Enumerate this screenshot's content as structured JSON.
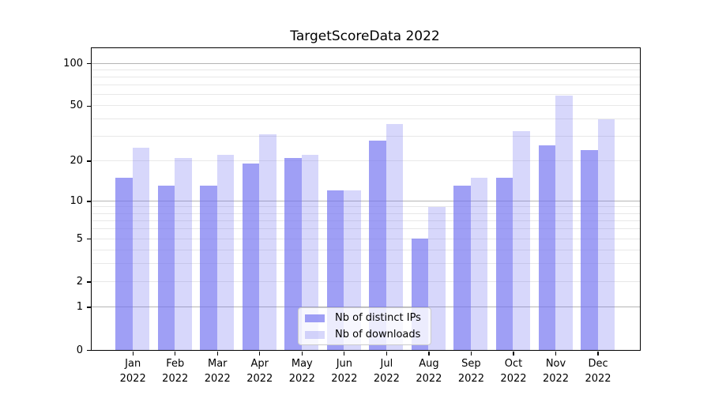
{
  "title": "TargetScoreData 2022",
  "chart_data": {
    "type": "bar",
    "title": "TargetScoreData 2022",
    "categories": [
      "Jan 2022",
      "Feb 2022",
      "Mar 2022",
      "Apr 2022",
      "May 2022",
      "Jun 2022",
      "Jul 2022",
      "Aug 2022",
      "Sep 2022",
      "Oct 2022",
      "Nov 2022",
      "Dec 2022"
    ],
    "month_labels": [
      "Jan",
      "Feb",
      "Mar",
      "Apr",
      "May",
      "Jun",
      "Jul",
      "Aug",
      "Sep",
      "Oct",
      "Nov",
      "Dec"
    ],
    "year_label": "2022",
    "series": [
      {
        "name": "Nb of distinct IPs",
        "values": [
          15,
          13,
          13,
          19,
          21,
          12,
          28,
          5,
          13,
          15,
          26,
          24
        ]
      },
      {
        "name": "Nb of downloads",
        "values": [
          25,
          21,
          22,
          31,
          22,
          12,
          37,
          9,
          15,
          33,
          59,
          40
        ]
      }
    ],
    "yscale": "log1p",
    "ylim": [
      0,
      128
    ],
    "y_tick_values": [
      100,
      50,
      20,
      10,
      5,
      2,
      1,
      0
    ],
    "y_tick_labels": [
      "100",
      "50",
      "20",
      "10",
      "5",
      "2",
      "1",
      "0"
    ],
    "gridlines": {
      "major": [
        1,
        10,
        100
      ],
      "minor": [
        2,
        3,
        4,
        5,
        6,
        7,
        8,
        9,
        20,
        30,
        40,
        50,
        60,
        70,
        80,
        90
      ]
    },
    "grid": true,
    "legend_position": "lower center"
  },
  "legend": {
    "items": [
      {
        "label": "Nb of distinct IPs"
      },
      {
        "label": "Nb of downloads"
      }
    ]
  },
  "colors": {
    "bar_distinct_ips": "rgba(112,112,240,0.67)",
    "bar_downloads": "rgba(112,112,240,0.28)",
    "grid_major": "#b5b5b5",
    "grid_minor": "#e8e8e8",
    "spine": "#000000",
    "text": "#000000",
    "legend_bg": "rgba(255,255,255,0.8)",
    "legend_border": "#cccccc"
  }
}
